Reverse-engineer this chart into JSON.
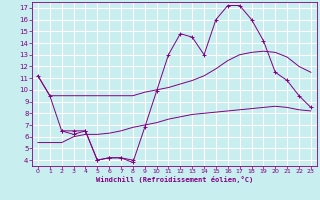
{
  "xlabel": "Windchill (Refroidissement éolien,°C)",
  "background_color": "#c8eef0",
  "grid_color": "#aadddd",
  "line_color": "#800080",
  "x_ticks": [
    0,
    1,
    2,
    3,
    4,
    5,
    6,
    7,
    8,
    9,
    10,
    11,
    12,
    13,
    14,
    15,
    16,
    17,
    18,
    19,
    20,
    21,
    22,
    23
  ],
  "y_ticks": [
    4,
    5,
    6,
    7,
    8,
    9,
    10,
    11,
    12,
    13,
    14,
    15,
    16,
    17
  ],
  "ylim": [
    3.5,
    17.5
  ],
  "xlim": [
    -0.5,
    23.5
  ],
  "series": [
    {
      "x": [
        0,
        1,
        2,
        3,
        4,
        5,
        6,
        7,
        8,
        9,
        10,
        11,
        12,
        13,
        14,
        15,
        16,
        17,
        18,
        19,
        20,
        21,
        22,
        23
      ],
      "y": [
        11.2,
        9.5,
        9.5,
        9.5,
        9.5,
        9.5,
        9.5,
        9.5,
        9.5,
        9.8,
        10.0,
        10.2,
        10.5,
        10.8,
        11.2,
        11.8,
        12.5,
        13.0,
        13.2,
        13.3,
        13.2,
        12.8,
        12.0,
        11.5
      ],
      "has_marker": false
    },
    {
      "x": [
        0,
        1,
        2,
        3,
        4,
        5,
        6,
        7,
        8,
        9,
        10,
        11,
        12,
        13,
        14,
        15,
        16,
        17,
        18,
        19,
        20,
        21,
        22,
        23
      ],
      "y": [
        5.5,
        5.5,
        5.5,
        6.0,
        6.2,
        6.2,
        6.3,
        6.5,
        6.8,
        7.0,
        7.2,
        7.5,
        7.7,
        7.9,
        8.0,
        8.1,
        8.2,
        8.3,
        8.4,
        8.5,
        8.6,
        8.5,
        8.3,
        8.2
      ],
      "has_marker": false
    },
    {
      "x": [
        0,
        1,
        2,
        3,
        4,
        5,
        6,
        7,
        8,
        9,
        10,
        11,
        12,
        13,
        14,
        15,
        16,
        17,
        18,
        19,
        20,
        21,
        22,
        23
      ],
      "y": [
        11.2,
        9.5,
        6.5,
        6.5,
        6.5,
        4.0,
        4.2,
        4.2,
        3.8,
        6.8,
        9.9,
        13.0,
        14.8,
        14.5,
        13.0,
        16.0,
        17.2,
        17.2,
        16.0,
        14.2,
        11.5,
        10.8,
        9.5,
        8.5
      ],
      "has_marker": true
    },
    {
      "x": [
        2,
        3,
        4,
        5,
        6,
        7,
        8
      ],
      "y": [
        6.5,
        6.2,
        6.5,
        4.0,
        4.2,
        4.2,
        4.0
      ],
      "has_marker": true
    }
  ]
}
